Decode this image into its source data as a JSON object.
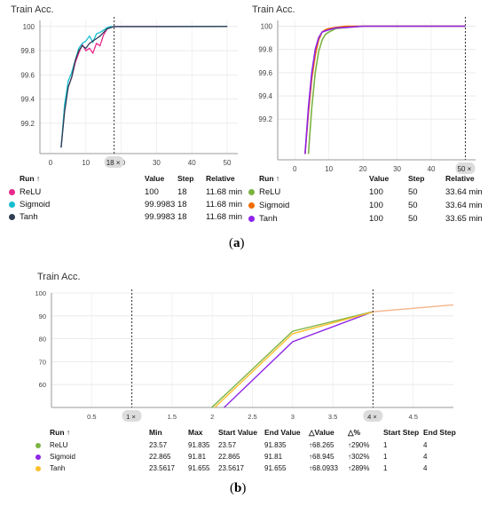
{
  "chart_data": [
    {
      "type": "line",
      "title": "Train Acc.",
      "xlabel": "",
      "ylabel": "",
      "xlim": [
        -3,
        53
      ],
      "ylim": [
        98.95,
        100.05
      ],
      "xticks": [
        "0",
        "10",
        "20",
        "30",
        "40",
        "50"
      ],
      "yticks": [
        "99.2",
        "99.4",
        "99.6",
        "99.8",
        "100"
      ],
      "cursor": {
        "x": 18,
        "label": "18"
      },
      "series": [
        {
          "name": "ReLU",
          "color": "#e7298a",
          "points": [
            [
              3,
              99.0
            ],
            [
              4,
              99.35
            ],
            [
              5,
              99.5
            ],
            [
              6,
              99.58
            ],
            [
              7,
              99.7
            ],
            [
              8,
              99.78
            ],
            [
              9,
              99.85
            ],
            [
              10,
              99.8
            ],
            [
              11,
              99.82
            ],
            [
              12,
              99.78
            ],
            [
              13,
              99.86
            ],
            [
              14,
              99.84
            ],
            [
              15,
              99.93
            ],
            [
              16,
              99.98
            ],
            [
              17,
              99.995
            ],
            [
              18,
              100
            ],
            [
              19,
              100
            ],
            [
              50,
              100
            ]
          ]
        },
        {
          "name": "Sigmoid",
          "color": "#17becf",
          "points": [
            [
              3,
              99.0
            ],
            [
              4,
              99.36
            ],
            [
              5,
              99.55
            ],
            [
              6,
              99.62
            ],
            [
              7,
              99.72
            ],
            [
              8,
              99.82
            ],
            [
              9,
              99.86
            ],
            [
              10,
              99.88
            ],
            [
              11,
              99.92
            ],
            [
              12,
              99.87
            ],
            [
              13,
              99.94
            ],
            [
              14,
              99.95
            ],
            [
              15,
              99.97
            ],
            [
              16,
              99.99
            ],
            [
              17,
              100
            ],
            [
              18,
              99.9983
            ],
            [
              30,
              99.9983
            ],
            [
              50,
              100
            ]
          ]
        },
        {
          "name": "Tanh",
          "color": "#2f3e55",
          "points": [
            [
              3,
              99.0
            ],
            [
              4,
              99.3
            ],
            [
              5,
              99.5
            ],
            [
              6,
              99.58
            ],
            [
              7,
              99.72
            ],
            [
              8,
              99.8
            ],
            [
              9,
              99.84
            ],
            [
              10,
              99.82
            ],
            [
              11,
              99.86
            ],
            [
              12,
              99.88
            ],
            [
              13,
              99.9
            ],
            [
              14,
              99.92
            ],
            [
              15,
              99.95
            ],
            [
              16,
              99.98
            ],
            [
              17,
              99.99
            ],
            [
              18,
              99.9983
            ],
            [
              30,
              99.9983
            ],
            [
              50,
              100
            ]
          ]
        }
      ],
      "table": {
        "headers": [
          "Run ↑",
          "Value",
          "Step",
          "Relative"
        ],
        "rows": [
          {
            "name": "ReLU",
            "color": "#e7298a",
            "value": "100",
            "step": "18",
            "relative": "11.68 min"
          },
          {
            "name": "Sigmoid",
            "color": "#17becf",
            "value": "99.9983",
            "step": "18",
            "relative": "11.68 min"
          },
          {
            "name": "Tanh",
            "color": "#2f3e55",
            "value": "99.9983",
            "step": "18",
            "relative": "11.68 min"
          }
        ]
      }
    },
    {
      "type": "line",
      "title": "Train Acc.",
      "xlabel": "",
      "ylabel": "",
      "xlim": [
        -5,
        53
      ],
      "ylim": [
        98.85,
        100.05
      ],
      "xticks": [
        "0",
        "10",
        "20",
        "30",
        "40",
        "50"
      ],
      "yticks": [
        "99.2",
        "99.4",
        "99.6",
        "99.8",
        "100"
      ],
      "cursor": {
        "x": 50,
        "label": "50"
      },
      "series": [
        {
          "name": "ReLU",
          "color": "#7cb342",
          "points": [
            [
              4,
              98.9
            ],
            [
              5,
              99.3
            ],
            [
              6,
              99.6
            ],
            [
              7,
              99.78
            ],
            [
              8,
              99.88
            ],
            [
              9,
              99.93
            ],
            [
              10,
              99.95
            ],
            [
              12,
              99.98
            ],
            [
              15,
              99.99
            ],
            [
              20,
              100
            ],
            [
              50,
              100
            ]
          ]
        },
        {
          "name": "Sigmoid",
          "color": "#ef6c00",
          "points": [
            [
              3,
              98.9
            ],
            [
              4,
              99.25
            ],
            [
              5,
              99.55
            ],
            [
              6,
              99.75
            ],
            [
              7,
              99.88
            ],
            [
              8,
              99.95
            ],
            [
              9,
              99.97
            ],
            [
              10,
              99.98
            ],
            [
              12,
              99.99
            ],
            [
              15,
              100
            ],
            [
              50,
              100
            ]
          ]
        },
        {
          "name": "Tanh",
          "color": "#8e24e8",
          "points": [
            [
              3,
              98.9
            ],
            [
              4,
              99.3
            ],
            [
              5,
              99.6
            ],
            [
              6,
              99.8
            ],
            [
              7,
              99.9
            ],
            [
              8,
              99.95
            ],
            [
              10,
              99.97
            ],
            [
              12,
              99.985
            ],
            [
              15,
              99.99
            ],
            [
              20,
              100
            ],
            [
              50,
              100
            ]
          ]
        }
      ],
      "table": {
        "headers": [
          "Run ↑",
          "Value",
          "Step",
          "Relative"
        ],
        "rows": [
          {
            "name": "ReLU",
            "color": "#7cb342",
            "value": "100",
            "step": "50",
            "relative": "33.64 min"
          },
          {
            "name": "Sigmoid",
            "color": "#ef6c00",
            "value": "100",
            "step": "50",
            "relative": "33.64 min"
          },
          {
            "name": "Tanh",
            "color": "#8e24e8",
            "value": "100",
            "step": "50",
            "relative": "33.65 min"
          }
        ]
      }
    },
    {
      "type": "line",
      "title": "Train Acc.",
      "xlabel": "",
      "ylabel": "",
      "xlim": [
        0,
        5
      ],
      "ylim": [
        50,
        100
      ],
      "xticks": [
        "0.5",
        "1",
        "1.5",
        "2",
        "2.5",
        "3",
        "3.5",
        "4",
        "4.5"
      ],
      "yticks": [
        "60",
        "70",
        "80",
        "90",
        "100"
      ],
      "cursors": [
        {
          "x": 1,
          "label": "1"
        },
        {
          "x": 4,
          "label": "4"
        }
      ],
      "series": [
        {
          "name": "ReLU",
          "color": "#7cb342",
          "points": [
            [
              1,
              23.57
            ],
            [
              2,
              50.2
            ],
            [
              3,
              83.3
            ],
            [
              4,
              91.835
            ]
          ]
        },
        {
          "name": "Sigmoid",
          "color": "#8e24e8",
          "points": [
            [
              1,
              22.865
            ],
            [
              2,
              45.0
            ],
            [
              3,
              78.7
            ],
            [
              4,
              91.81
            ]
          ]
        },
        {
          "name": "Tanh",
          "color": "#fbc02d",
          "points": [
            [
              1,
              23.5617
            ],
            [
              2,
              49.0
            ],
            [
              3,
              82.2
            ],
            [
              4,
              91.655
            ]
          ]
        },
        {
          "name": "",
          "color": "#f5b48a",
          "points": [
            [
              4,
              91.8
            ],
            [
              5,
              94.8
            ]
          ]
        }
      ],
      "table": {
        "headers": [
          "Run ↑",
          "Min",
          "Max",
          "Start Value",
          "End Value",
          "△Value",
          "△%",
          "Start Step",
          "End Step"
        ],
        "rows": [
          {
            "name": "ReLU",
            "color": "#7cb342",
            "min": "23.57",
            "max": "91.835",
            "start": "23.57",
            "end": "91.835",
            "dvalue": "↑68.265",
            "dpct": "↑290%",
            "sstep": "1",
            "estep": "4"
          },
          {
            "name": "Sigmoid",
            "color": "#8e24e8",
            "min": "22.865",
            "max": "91.81",
            "start": "22.865",
            "end": "91.81",
            "dvalue": "↑68.945",
            "dpct": "↑302%",
            "sstep": "1",
            "estep": "4"
          },
          {
            "name": "Tanh",
            "color": "#fbc02d",
            "min": "23.5617",
            "max": "91.655",
            "start": "23.5617",
            "end": "91.655",
            "dvalue": "↑68.0933",
            "dpct": "↑289%",
            "sstep": "1",
            "estep": "4"
          }
        ]
      }
    }
  ],
  "captions": {
    "a": "a",
    "b": "b"
  }
}
